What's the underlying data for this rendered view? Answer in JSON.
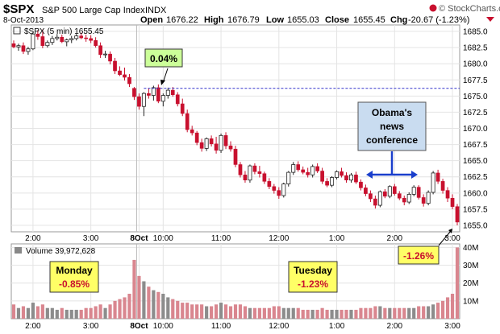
{
  "header": {
    "symbol": "$SPX",
    "name": "S&P 500 Large Cap Index",
    "exchange": "INDX",
    "date": "8-Oct-2013",
    "open_label": "Open",
    "open": "1676.22",
    "high_label": "High",
    "high": "1676.79",
    "low_label": "Low",
    "low": "1655.03",
    "close_label": "Close",
    "close": "1655.45",
    "chg_label": "Chg",
    "chg": "-20.67 (-1.23%)",
    "brand": "© StockCharts.com"
  },
  "price_legend": "$SPX (5 min) 1655.45",
  "volume_legend": "Volume 39,972,628",
  "annotations": {
    "pct_top": "0.04%",
    "news_line1": "Obama's",
    "news_line2": "news",
    "news_line3": "conference",
    "monday_title": "Monday",
    "monday_value": "-0.85%",
    "tuesday_title": "Tuesday",
    "tuesday_value": "-1.23%",
    "pct_close": "-1.26%"
  },
  "colors": {
    "up": "#ffffff",
    "down": "#c8102e",
    "vol_up": "#8c8c8c",
    "vol_down": "#d9868f",
    "callout_green": "#ccff99",
    "callout_yellow": "#ffff66",
    "callout_blue": "#c9dcf0",
    "ref_line": "#3333cc",
    "arrow_blue": "#1a3fcc"
  },
  "chart_data": {
    "type": "candlestick",
    "interval": "5 min",
    "price_axis": {
      "ylim": [
        1654,
        1686
      ],
      "ticks": [
        "1685.0",
        "1682.5",
        "1680.0",
        "1677.5",
        "1675.0",
        "1672.5",
        "1670.0",
        "1667.5",
        "1665.0",
        "1662.5",
        "1660.0",
        "1657.5",
        "1655.0"
      ]
    },
    "volume_axis": {
      "ylim": [
        0,
        42
      ],
      "unit": "M",
      "ticks": [
        "40M",
        "30M",
        "20M",
        "10M"
      ]
    },
    "x_ticks": [
      {
        "label": "2:00",
        "bar": 4,
        "bold": false
      },
      {
        "label": "3:00",
        "bar": 16,
        "bold": false
      },
      {
        "label": "8Oct",
        "bar": 26,
        "bold": true
      },
      {
        "label": "10:00",
        "bar": 31,
        "bold": false
      },
      {
        "label": "11:00",
        "bar": 43,
        "bold": false
      },
      {
        "label": "12:00",
        "bar": 55,
        "bold": false
      },
      {
        "label": "1:00",
        "bar": 67,
        "bold": false
      },
      {
        "label": "2:00",
        "bar": 79,
        "bold": false
      },
      {
        "label": "3:00",
        "bar": 91,
        "bold": false
      }
    ],
    "session_break_bar": 25.5,
    "reference_level": 1676.2,
    "candles": [
      [
        1683.1,
        1683.6,
        1682.4,
        1682.6,
        8
      ],
      [
        1682.6,
        1683.1,
        1682.0,
        1682.8,
        6
      ],
      [
        1682.8,
        1683.3,
        1681.5,
        1681.9,
        7
      ],
      [
        1681.9,
        1682.6,
        1681.4,
        1682.3,
        6
      ],
      [
        1682.3,
        1684.9,
        1682.1,
        1684.6,
        9
      ],
      [
        1684.6,
        1685.2,
        1683.7,
        1684.2,
        7
      ],
      [
        1684.2,
        1685.3,
        1682.4,
        1682.8,
        8
      ],
      [
        1682.8,
        1683.6,
        1682.5,
        1683.3,
        6
      ],
      [
        1683.3,
        1684.3,
        1682.9,
        1683.9,
        6
      ],
      [
        1683.9,
        1684.6,
        1683.6,
        1684.1,
        5
      ],
      [
        1684.1,
        1684.5,
        1683.2,
        1683.4,
        6
      ],
      [
        1683.4,
        1683.9,
        1682.7,
        1683.7,
        5
      ],
      [
        1683.7,
        1684.3,
        1683.2,
        1683.9,
        5
      ],
      [
        1683.9,
        1684.6,
        1683.6,
        1684.3,
        5
      ],
      [
        1684.3,
        1684.8,
        1683.8,
        1684.0,
        5
      ],
      [
        1684.0,
        1684.5,
        1683.4,
        1683.9,
        6
      ],
      [
        1683.9,
        1684.4,
        1683.2,
        1683.6,
        6
      ],
      [
        1683.6,
        1684.1,
        1682.5,
        1682.8,
        7
      ],
      [
        1682.8,
        1683.3,
        1680.9,
        1681.4,
        8
      ],
      [
        1681.4,
        1682.0,
        1680.9,
        1681.5,
        6
      ],
      [
        1681.5,
        1681.9,
        1679.9,
        1680.4,
        8
      ],
      [
        1680.4,
        1680.9,
        1678.4,
        1678.9,
        10
      ],
      [
        1678.9,
        1679.6,
        1678.1,
        1678.3,
        11
      ],
      [
        1678.3,
        1679.4,
        1677.4,
        1677.9,
        12
      ],
      [
        1677.9,
        1678.4,
        1676.4,
        1676.9,
        14
      ],
      [
        1676.2,
        1676.4,
        1674.4,
        1674.9,
        33
      ],
      [
        1674.9,
        1675.4,
        1672.9,
        1673.4,
        24
      ],
      [
        1673.4,
        1675.6,
        1671.9,
        1675.4,
        21
      ],
      [
        1675.4,
        1676.2,
        1674.6,
        1675.1,
        18
      ],
      [
        1675.1,
        1676.6,
        1674.3,
        1676.3,
        16
      ],
      [
        1676.3,
        1676.8,
        1673.9,
        1674.2,
        15
      ],
      [
        1674.2,
        1675.4,
        1673.4,
        1675.1,
        14
      ],
      [
        1675.1,
        1676.3,
        1674.6,
        1675.9,
        12
      ],
      [
        1675.9,
        1676.4,
        1674.9,
        1675.2,
        11
      ],
      [
        1675.2,
        1675.6,
        1673.4,
        1673.8,
        10
      ],
      [
        1673.8,
        1674.6,
        1671.9,
        1672.3,
        9
      ],
      [
        1672.3,
        1672.9,
        1669.4,
        1669.8,
        9
      ],
      [
        1669.8,
        1670.4,
        1668.9,
        1669.3,
        8
      ],
      [
        1669.3,
        1669.6,
        1667.4,
        1667.8,
        8
      ],
      [
        1667.8,
        1668.4,
        1666.4,
        1666.9,
        8
      ],
      [
        1666.9,
        1668.6,
        1666.5,
        1668.4,
        7
      ],
      [
        1668.4,
        1668.9,
        1667.2,
        1667.6,
        7
      ],
      [
        1667.6,
        1668.7,
        1666.1,
        1666.6,
        8
      ],
      [
        1666.6,
        1669.2,
        1666.2,
        1668.9,
        9
      ],
      [
        1668.9,
        1669.4,
        1666.8,
        1667.3,
        8
      ],
      [
        1667.3,
        1668.0,
        1666.4,
        1666.8,
        7
      ],
      [
        1666.8,
        1667.3,
        1664.0,
        1664.4,
        8
      ],
      [
        1664.4,
        1664.8,
        1662.4,
        1662.8,
        8
      ],
      [
        1662.8,
        1663.4,
        1661.6,
        1662.0,
        7
      ],
      [
        1662.0,
        1664.4,
        1661.6,
        1664.2,
        6
      ],
      [
        1664.2,
        1664.6,
        1662.9,
        1663.3,
        6
      ],
      [
        1663.3,
        1664.2,
        1662.4,
        1663.0,
        6
      ],
      [
        1663.0,
        1663.3,
        1661.4,
        1661.8,
        6
      ],
      [
        1661.8,
        1662.3,
        1660.6,
        1661.0,
        6
      ],
      [
        1661.0,
        1661.4,
        1659.9,
        1660.4,
        7
      ],
      [
        1660.4,
        1660.9,
        1659.1,
        1659.6,
        7
      ],
      [
        1659.6,
        1661.6,
        1659.3,
        1661.4,
        6
      ],
      [
        1661.4,
        1663.4,
        1661.0,
        1663.2,
        6
      ],
      [
        1663.2,
        1664.8,
        1662.8,
        1664.4,
        6
      ],
      [
        1664.4,
        1664.9,
        1663.3,
        1663.6,
        6
      ],
      [
        1663.6,
        1664.1,
        1662.9,
        1663.2,
        5
      ],
      [
        1663.2,
        1663.9,
        1662.4,
        1662.8,
        5
      ],
      [
        1662.8,
        1664.4,
        1662.4,
        1664.1,
        5
      ],
      [
        1664.1,
        1664.6,
        1663.1,
        1663.4,
        5
      ],
      [
        1663.4,
        1663.9,
        1661.4,
        1661.8,
        6
      ],
      [
        1661.8,
        1662.3,
        1660.9,
        1661.2,
        5
      ],
      [
        1661.2,
        1662.6,
        1660.9,
        1662.4,
        5
      ],
      [
        1662.4,
        1663.5,
        1662.1,
        1663.3,
        5
      ],
      [
        1663.3,
        1663.9,
        1662.4,
        1662.7,
        5
      ],
      [
        1662.7,
        1663.2,
        1661.6,
        1662.0,
        5
      ],
      [
        1662.0,
        1663.1,
        1661.6,
        1662.8,
        5
      ],
      [
        1662.8,
        1663.3,
        1661.4,
        1661.7,
        5
      ],
      [
        1661.7,
        1662.1,
        1660.4,
        1660.8,
        6
      ],
      [
        1660.8,
        1661.3,
        1659.5,
        1659.9,
        6
      ],
      [
        1659.9,
        1660.4,
        1658.6,
        1659.1,
        6
      ],
      [
        1659.1,
        1659.6,
        1657.6,
        1658.1,
        7
      ],
      [
        1658.1,
        1660.4,
        1657.8,
        1660.2,
        7
      ],
      [
        1660.2,
        1660.6,
        1659.2,
        1659.5,
        6
      ],
      [
        1659.5,
        1661.2,
        1659.2,
        1661.0,
        6
      ],
      [
        1661.0,
        1661.4,
        1659.6,
        1659.9,
        6
      ],
      [
        1659.9,
        1660.3,
        1658.9,
        1659.2,
        6
      ],
      [
        1659.2,
        1659.6,
        1658.1,
        1658.6,
        6
      ],
      [
        1658.6,
        1660.1,
        1658.3,
        1659.8,
        6
      ],
      [
        1659.8,
        1661.2,
        1659.5,
        1660.9,
        6
      ],
      [
        1660.9,
        1661.2,
        1659.0,
        1659.3,
        7
      ],
      [
        1659.3,
        1659.8,
        1657.9,
        1658.4,
        7
      ],
      [
        1658.4,
        1660.4,
        1658.1,
        1660.1,
        7
      ],
      [
        1660.1,
        1663.4,
        1659.8,
        1663.1,
        8
      ],
      [
        1663.1,
        1663.6,
        1661.4,
        1661.8,
        9
      ],
      [
        1661.8,
        1662.2,
        1659.9,
        1660.4,
        10
      ],
      [
        1660.4,
        1660.9,
        1658.6,
        1659.2,
        12
      ],
      [
        1659.2,
        1659.8,
        1657.5,
        1657.9,
        14
      ],
      [
        1657.9,
        1658.3,
        1655.0,
        1655.5,
        40
      ]
    ]
  }
}
